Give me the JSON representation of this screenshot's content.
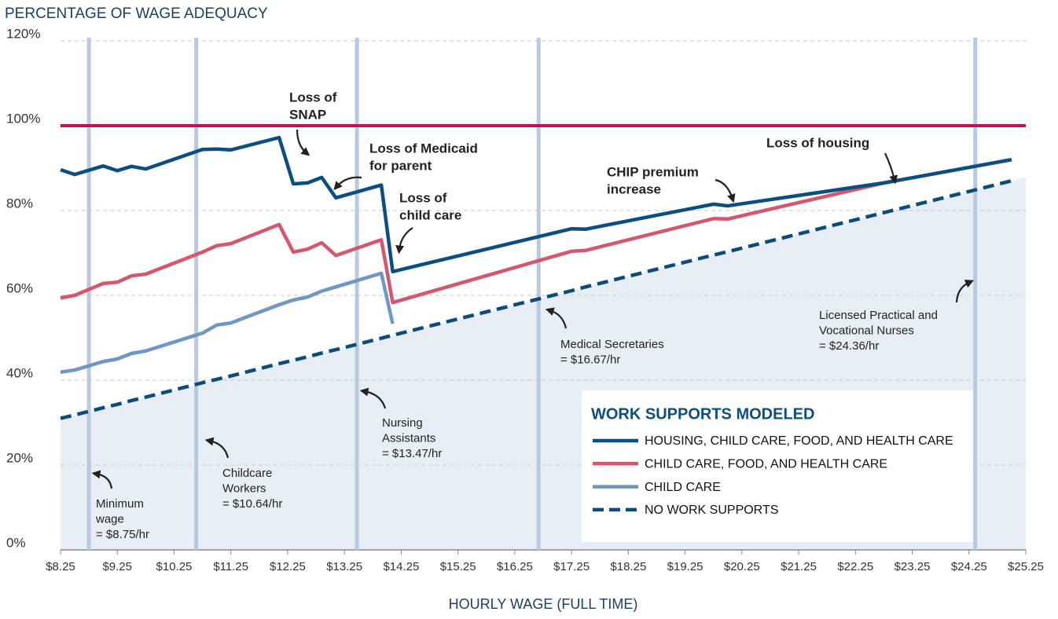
{
  "chart_data": {
    "type": "line",
    "title": "PERCENTAGE OF WAGE ADEQUACY",
    "x_label": "HOURLY WAGE (FULL TIME)",
    "x": [
      8.25,
      8.5,
      9.0,
      9.25,
      9.5,
      9.75,
      10.75,
      11.0,
      11.25,
      12.1,
      12.35,
      12.6,
      12.85,
      13.1,
      13.9,
      14.1,
      17.25,
      17.5,
      19.75,
      20.0,
      22.75,
      25.0
    ],
    "series": [
      {
        "name": "HOUSING, CHILD CARE, FOOD, AND HEALTH CARE",
        "color": "#0b4f80",
        "values": [
          89.6,
          88.5,
          90.5,
          89.4,
          90.4,
          89.8,
          94.4,
          94.5,
          94.3,
          97.2,
          86.3,
          86.5,
          87.8,
          83,
          86,
          65.6,
          75.7,
          75.6,
          81.5,
          81.1,
          86.5,
          92
        ]
      },
      {
        "name": "CHILD CARE, FOOD, AND HEALTH CARE",
        "color": "#d5576e",
        "values": [
          59.4,
          60,
          62.8,
          63.1,
          64.6,
          65,
          70.2,
          71.7,
          72.2,
          76.7,
          70.2,
          70.9,
          72.4,
          69.4,
          73.1,
          58.3,
          70.4,
          70.6,
          78.1,
          78,
          86.5,
          92
        ]
      },
      {
        "name": "CHILD CARE",
        "color": "#6f97c3",
        "values": [
          41.9,
          42.4,
          44.4,
          45,
          46.3,
          46.9,
          51.1,
          53,
          53.5,
          57.8,
          58.9,
          59.6,
          61,
          62,
          65.2,
          53.3,
          null,
          null,
          null,
          null,
          null,
          null
        ]
      },
      {
        "name": "NO WORK SUPPORTS",
        "color": "#0d4b7a",
        "dashed": true,
        "area_color": "#e8eef6",
        "values": [
          31,
          31.8,
          33.5,
          34.3,
          35.2,
          36,
          39.4,
          40.2,
          41,
          43.9,
          44.7,
          45.5,
          46.4,
          47.2,
          49.9,
          50.6,
          61.1,
          62,
          69.5,
          70.3,
          79.5,
          87
        ]
      }
    ],
    "reference_line": {
      "value": 100,
      "color": "#c8104e"
    },
    "xlim": [
      8.25,
      25.25
    ],
    "ylim": [
      0,
      120
    ],
    "xticks": [
      {
        "value": 8.25,
        "label": "$8.25"
      },
      {
        "value": 9.25,
        "label": "$9.25"
      },
      {
        "value": 10.25,
        "label": "$10.25"
      },
      {
        "value": 11.25,
        "label": "$11.25"
      },
      {
        "value": 12.25,
        "label": "$12.25"
      },
      {
        "value": 13.25,
        "label": "$13.25"
      },
      {
        "value": 14.25,
        "label": "$14.25"
      },
      {
        "value": 15.25,
        "label": "$15.25"
      },
      {
        "value": 16.25,
        "label": "$16.25"
      },
      {
        "value": 17.25,
        "label": "$17.25"
      },
      {
        "value": 18.25,
        "label": "$18.25"
      },
      {
        "value": 19.25,
        "label": "$19.25"
      },
      {
        "value": 20.25,
        "label": "$20.25"
      },
      {
        "value": 21.25,
        "label": "$21.25"
      },
      {
        "value": 22.25,
        "label": "$22.25"
      },
      {
        "value": 23.25,
        "label": "$23.25"
      },
      {
        "value": 24.25,
        "label": "$24.25"
      },
      {
        "value": 25.25,
        "label": "$25.25"
      }
    ],
    "yticks": [
      {
        "value": 0,
        "label": "0%"
      },
      {
        "value": 20,
        "label": "20%"
      },
      {
        "value": 40,
        "label": "40%"
      },
      {
        "value": 60,
        "label": "60%"
      },
      {
        "value": 80,
        "label": "80%"
      },
      {
        "value": 100,
        "label": "100%"
      },
      {
        "value": 120,
        "label": "120%"
      }
    ],
    "grid": true,
    "legend": {
      "title": "WORK SUPPORTS MODELED",
      "position": "lower right"
    },
    "occupation_color": "#b9c9df",
    "occupations": [
      {
        "x": 8.75,
        "text": [
          "Minimum",
          "wage",
          "= $8.75/hr"
        ]
      },
      {
        "x": 10.64,
        "text": [
          "Childcare",
          "Workers",
          "= $10.64/hr"
        ]
      },
      {
        "x": 13.47,
        "text": [
          "Nursing",
          "Assistants",
          "= $13.47/hr"
        ]
      },
      {
        "x": 16.67,
        "text": [
          "Medical Secretaries",
          "= $16.67/hr"
        ]
      },
      {
        "x": 24.36,
        "text": [
          "Licensed Practical and",
          "Vocational Nurses",
          "= $24.36/hr"
        ]
      }
    ],
    "annotations": [
      {
        "text": [
          "Loss of",
          "SNAP"
        ]
      },
      {
        "text": [
          "Loss of Medicaid",
          "for parent"
        ]
      },
      {
        "text": [
          "Loss of",
          "child care"
        ]
      },
      {
        "text": [
          "CHIP premium",
          "increase"
        ]
      },
      {
        "text": [
          "Loss of housing"
        ]
      }
    ]
  }
}
